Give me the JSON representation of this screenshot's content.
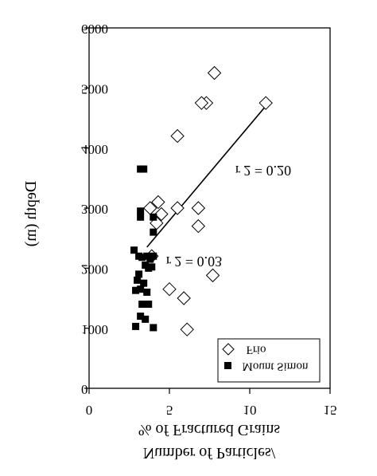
{
  "chart_data": {
    "type": "scatter",
    "orientation_note": "image is rotated 180 degrees (text appears upside-down/mirrored)",
    "ylabel": "Depth (m)",
    "xlabel_line1": "Number of Particles/",
    "xlabel_line2": "% of Fractured Grains",
    "xlim": [
      0,
      15
    ],
    "ylim": [
      0,
      6000
    ],
    "x_ticks": [
      "0",
      "5",
      "10",
      "15"
    ],
    "y_ticks": [
      "0",
      "1000",
      "2000",
      "3000",
      "4000",
      "5000",
      "6000"
    ],
    "series": [
      {
        "name": "Frio",
        "marker": "open-diamond",
        "points": [
          [
            11.0,
            4750
          ],
          [
            7.8,
            5250
          ],
          [
            7.3,
            4750
          ],
          [
            7.0,
            4750
          ],
          [
            5.5,
            4200
          ],
          [
            4.3,
            3100
          ],
          [
            4.5,
            2900
          ],
          [
            4.2,
            2750
          ],
          [
            3.8,
            3000
          ],
          [
            5.5,
            3000
          ],
          [
            6.8,
            3000
          ],
          [
            6.8,
            2700
          ],
          [
            3.9,
            2200
          ],
          [
            5.0,
            1650
          ],
          [
            7.7,
            1880
          ],
          [
            5.9,
            1500
          ],
          [
            6.1,
            980
          ]
        ]
      },
      {
        "name": "Mount Simon",
        "marker": "filled-square",
        "points": [
          [
            3.2,
            3650
          ],
          [
            3.4,
            3650
          ],
          [
            3.2,
            2950
          ],
          [
            3.2,
            2850
          ],
          [
            4.0,
            2850
          ],
          [
            4.0,
            2600
          ],
          [
            2.8,
            2300
          ],
          [
            3.1,
            2200
          ],
          [
            3.3,
            2180
          ],
          [
            3.6,
            2200
          ],
          [
            3.8,
            2150
          ],
          [
            4.0,
            2200
          ],
          [
            3.5,
            2050
          ],
          [
            3.7,
            2000
          ],
          [
            3.9,
            2020
          ],
          [
            3.1,
            1900
          ],
          [
            3.0,
            1800
          ],
          [
            3.4,
            1750
          ],
          [
            2.9,
            1630
          ],
          [
            3.2,
            1650
          ],
          [
            3.6,
            1600
          ],
          [
            3.3,
            1400
          ],
          [
            3.7,
            1400
          ],
          [
            3.2,
            1200
          ],
          [
            3.5,
            1150
          ],
          [
            2.9,
            1030
          ],
          [
            4.0,
            1010
          ]
        ]
      }
    ],
    "fit_lines": [
      {
        "series": "Frio",
        "start": [
          3.6,
          2350
        ],
        "end": [
          11.0,
          4700
        ]
      }
    ],
    "annotations": [
      "r 2 = 0.20",
      "r 2 = 0.03"
    ],
    "legend": [
      "Frio",
      "Mount Simon"
    ],
    "legend_placement": "lower-right (upside-down)",
    "grid": false
  }
}
